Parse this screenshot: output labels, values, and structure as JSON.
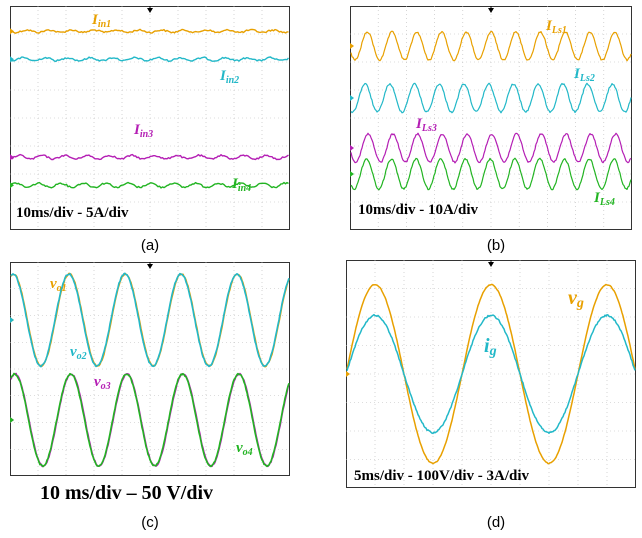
{
  "captions": [
    "(a)",
    "(b)",
    "(c)",
    "(d)"
  ],
  "colors": {
    "ch1": "#e8a000",
    "ch2": "#22b8c8",
    "ch3": "#b41eb4",
    "ch4": "#22b422",
    "grid": "#bbbbbb",
    "frame": "#333333"
  },
  "chart_data": [
    {
      "type": "line",
      "caption": "(a)",
      "settings": "10ms/div - 5A/div",
      "series": [
        {
          "name": "Iin1",
          "main": "I",
          "sub": "in1",
          "color": "#e8a000",
          "shape": "dc",
          "level_div": 7.1
        },
        {
          "name": "Iin2",
          "main": "I",
          "sub": "in2",
          "color": "#22b8c8",
          "shape": "dc",
          "level_div": 6.1
        },
        {
          "name": "Iin3",
          "main": "I",
          "sub": "in3",
          "color": "#b41eb4",
          "shape": "dc",
          "level_div": 2.6
        },
        {
          "name": "Iin4",
          "main": "I",
          "sub": "in4",
          "color": "#22b422",
          "shape": "dc",
          "level_div": 1.6
        }
      ]
    },
    {
      "type": "line",
      "caption": "(b)",
      "settings": "10ms/div - 10A/div",
      "series": [
        {
          "name": "ILs1",
          "main": "I",
          "sub": "Ls1",
          "color": "#e8a000",
          "shape": "sine",
          "cycles": 11.4
        },
        {
          "name": "ILs2",
          "main": "I",
          "sub": "Ls2",
          "color": "#22b8c8",
          "shape": "sine",
          "cycles": 11.4
        },
        {
          "name": "ILs3",
          "main": "I",
          "sub": "Ls3",
          "color": "#b41eb4",
          "shape": "sine",
          "cycles": 11.4
        },
        {
          "name": "ILs4",
          "main": "I",
          "sub": "Ls4",
          "color": "#22b422",
          "shape": "sine",
          "cycles": 11.4
        }
      ]
    },
    {
      "type": "line",
      "caption": "(c)",
      "settings": "10 ms/div – 50 V/div",
      "series": [
        {
          "name": "vo1",
          "main": "v",
          "sub": "o1",
          "color": "#e8a000",
          "shape": "sine",
          "cycles": 5
        },
        {
          "name": "vo2",
          "main": "v",
          "sub": "o2",
          "color": "#22b8c8",
          "shape": "sine",
          "cycles": 5
        },
        {
          "name": "vo3",
          "main": "v",
          "sub": "o3",
          "color": "#b41eb4",
          "shape": "sine",
          "cycles": 5
        },
        {
          "name": "vo4",
          "main": "v",
          "sub": "o4",
          "color": "#22b422",
          "shape": "sine",
          "cycles": 5
        }
      ]
    },
    {
      "type": "line",
      "caption": "(d)",
      "settings": "5ms/div - 100V/div - 3A/div",
      "series": [
        {
          "name": "vg",
          "main": "v",
          "sub": "g",
          "color": "#e8a000",
          "shape": "sine",
          "cycles": 2.5,
          "amplitude_div": 3.2
        },
        {
          "name": "ig",
          "main": "i",
          "sub": "g",
          "color": "#22b8c8",
          "shape": "sine",
          "cycles": 2.5,
          "amplitude_div": 2.1
        }
      ]
    }
  ]
}
